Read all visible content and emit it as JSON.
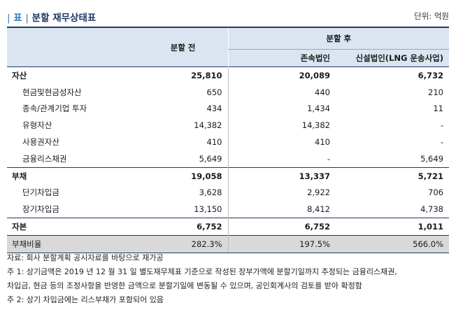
{
  "header": {
    "bar_left": "|",
    "tag": "표",
    "bar_mid": "|",
    "title": "분할 재무상태표",
    "unit": "단위: 억원"
  },
  "columns": {
    "before": "분할 전",
    "after": "분할 후",
    "surviving": "존속법인",
    "new_corp": "신설법인(LNG 운송사업)"
  },
  "rows": [
    {
      "label": "자산",
      "before": "25,810",
      "surviving": "20,089",
      "new_corp": "6,732",
      "group": true,
      "first": true
    },
    {
      "label": "현금및현금성자산",
      "before": "650",
      "surviving": "440",
      "new_corp": "210"
    },
    {
      "label": "종속/관계기업 투자",
      "before": "434",
      "surviving": "1,434",
      "new_corp": "11"
    },
    {
      "label": "유형자산",
      "before": "14,382",
      "surviving": "14,382",
      "new_corp": "-"
    },
    {
      "label": "사용권자산",
      "before": "410",
      "surviving": "410",
      "new_corp": "-"
    },
    {
      "label": "금융리스채권",
      "before": "5,649",
      "surviving": "-",
      "new_corp": "5,649"
    },
    {
      "label": "부채",
      "before": "19,058",
      "surviving": "13,337",
      "new_corp": "5,721",
      "group": true
    },
    {
      "label": "단기차입금",
      "before": "3,628",
      "surviving": "2,922",
      "new_corp": "706"
    },
    {
      "label": "장기차입금",
      "before": "13,150",
      "surviving": "8,412",
      "new_corp": "4,738"
    },
    {
      "label": "자본",
      "before": "6,752",
      "surviving": "6,752",
      "new_corp": "1,011",
      "group": true
    },
    {
      "label": "부채비율",
      "before": "282.3%",
      "surviving": "197.5%",
      "new_corp": "566.0%",
      "ratio": true
    }
  ],
  "notes": [
    "자료: 회사 분할계획 공시자료를 바탕으로 재가공",
    "주 1: 상기금액은 2019 년 12 월 31 일 별도재무제표 기준으로 작성된 장부가액에 분할기일까지 추정되는 금융리스채권,",
    "차입금, 현금 등의 조정사항을 반영한 금액으로 분할기일에 변동될 수 있으며, 공인회계사의 검토를 받아 확정함",
    "주 2: 상기 차입금에는 리스부채가 포함되어 있음"
  ]
}
